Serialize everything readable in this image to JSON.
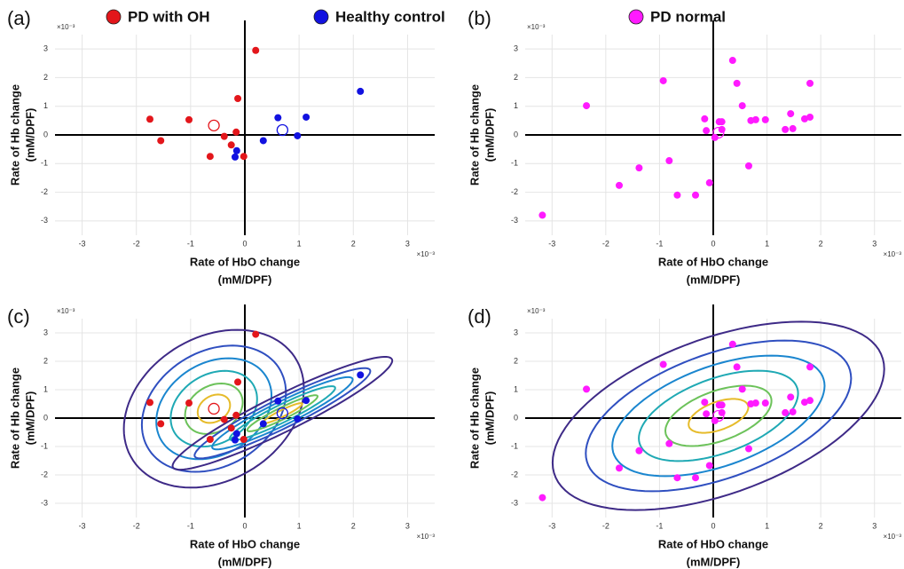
{
  "chart_data": [
    {
      "type": "scatter",
      "panel_label": "(a)",
      "xlabel": [
        "Rate of HbO change",
        "(mM/DPF)"
      ],
      "ylabel": [
        "Rate of Hb change",
        "(mM/DPF)"
      ],
      "x_exponent": "×10⁻³",
      "y_exponent": "×10⁻³",
      "xlim": [
        -3.5,
        3.5
      ],
      "ylim": [
        -3.5,
        3.5
      ],
      "xticks": [
        -3,
        -2,
        -1,
        0,
        1,
        2,
        3
      ],
      "yticks": [
        -3,
        -2,
        -1,
        0,
        1,
        2,
        3
      ],
      "grid": true,
      "show_mean": true,
      "contours": false,
      "series": [
        {
          "name": "PD with OH",
          "color": "#e3161b",
          "x": [
            0.2,
            -0.13,
            -1.75,
            -1.03,
            -1.55,
            -0.38,
            -0.25,
            -0.16,
            -0.64,
            -0.02
          ],
          "values": [
            2.95,
            1.27,
            0.55,
            0.53,
            -0.2,
            -0.05,
            -0.35,
            0.1,
            -0.75,
            -0.75
          ]
        },
        {
          "name": "Healthy control",
          "color": "#1212e0",
          "x": [
            2.13,
            1.13,
            0.61,
            0.34,
            0.97,
            -0.15,
            -0.18
          ],
          "values": [
            1.52,
            0.62,
            0.6,
            -0.2,
            -0.03,
            -0.55,
            -0.77
          ]
        }
      ]
    },
    {
      "type": "scatter",
      "panel_label": "(b)",
      "xlabel": [
        "Rate of HbO change",
        "(mM/DPF)"
      ],
      "ylabel": [
        "Rate of Hb change",
        "(mM/DPF)"
      ],
      "x_exponent": "×10⁻³",
      "y_exponent": "×10⁻³",
      "xlim": [
        -3.5,
        3.5
      ],
      "ylim": [
        -3.5,
        3.5
      ],
      "xticks": [
        -3,
        -2,
        -1,
        0,
        1,
        2,
        3
      ],
      "yticks": [
        -3,
        -2,
        -1,
        0,
        1,
        2,
        3
      ],
      "grid": true,
      "show_mean": true,
      "contours": false,
      "series": [
        {
          "name": "PD normal",
          "color": "#ff1aff",
          "x": [
            -3.18,
            -2.36,
            -1.75,
            -1.38,
            -0.93,
            -0.82,
            -0.67,
            -0.33,
            -0.07,
            -0.16,
            -0.13,
            0.03,
            0.11,
            0.16,
            0.16,
            0.36,
            0.44,
            0.54,
            0.7,
            0.79,
            0.66,
            0.97,
            1.34,
            1.44,
            1.48,
            1.7,
            1.8,
            1.8
          ],
          "values": [
            -2.8,
            1.02,
            -1.76,
            -1.15,
            1.89,
            -0.9,
            -2.1,
            -2.1,
            -1.67,
            0.56,
            0.15,
            -0.09,
            0.46,
            0.46,
            0.19,
            2.6,
            1.8,
            1.02,
            0.5,
            0.53,
            -1.08,
            0.53,
            0.19,
            0.74,
            0.22,
            0.56,
            0.62,
            1.8
          ]
        }
      ]
    },
    {
      "type": "scatter",
      "panel_label": "(c)",
      "xlabel": [
        "Rate of HbO change",
        "(mM/DPF)"
      ],
      "ylabel": [
        "Rate of Hb change",
        "(mM/DPF)"
      ],
      "x_exponent": "×10⁻³",
      "y_exponent": "×10⁻³",
      "xlim": [
        -3.5,
        3.5
      ],
      "ylim": [
        -3.5,
        3.5
      ],
      "xticks": [
        -3,
        -2,
        -1,
        0,
        1,
        2,
        3
      ],
      "yticks": [
        -3,
        -2,
        -1,
        0,
        1,
        2,
        3
      ],
      "grid": true,
      "show_mean": true,
      "contours": true,
      "contour_colors": [
        "#3e2a87",
        "#2f4fc0",
        "#1a86cf",
        "#1fa9b4",
        "#6cc25a",
        "#e6bb2a"
      ],
      "series": [
        {
          "color": "#e3161b",
          "x": [
            0.2,
            -0.13,
            -1.75,
            -1.03,
            -1.55,
            -0.38,
            -0.25,
            -0.16,
            -0.64,
            -0.02
          ],
          "values": [
            2.95,
            1.27,
            0.55,
            0.53,
            -0.2,
            -0.05,
            -0.35,
            0.1,
            -0.75,
            -0.75
          ]
        },
        {
          "color": "#1212e0",
          "x": [
            2.13,
            1.13,
            0.61,
            0.34,
            0.97,
            -0.15,
            -0.18
          ],
          "values": [
            1.52,
            0.62,
            0.6,
            -0.2,
            -0.03,
            -0.55,
            -0.77
          ]
        }
      ]
    },
    {
      "type": "scatter",
      "panel_label": "(d)",
      "xlabel": [
        "Rate of HbO change",
        "(mM/DPF)"
      ],
      "ylabel": [
        "Rate of Hb change",
        "(mM/DPF)"
      ],
      "x_exponent": "×10⁻³",
      "y_exponent": "×10⁻³",
      "xlim": [
        -3.5,
        3.5
      ],
      "ylim": [
        -3.5,
        3.5
      ],
      "xticks": [
        -3,
        -2,
        -1,
        0,
        1,
        2,
        3
      ],
      "yticks": [
        -3,
        -2,
        -1,
        0,
        1,
        2,
        3
      ],
      "grid": true,
      "show_mean": true,
      "contours": true,
      "contour_colors": [
        "#3e2a87",
        "#2f4fc0",
        "#1a86cf",
        "#1fa9b4",
        "#6cc25a",
        "#e6bb2a"
      ],
      "series": [
        {
          "color": "#ff1aff",
          "x": [
            -3.18,
            -2.36,
            -1.75,
            -1.38,
            -0.93,
            -0.82,
            -0.67,
            -0.33,
            -0.07,
            -0.16,
            -0.13,
            0.03,
            0.11,
            0.16,
            0.16,
            0.36,
            0.44,
            0.54,
            0.7,
            0.79,
            0.66,
            0.97,
            1.34,
            1.44,
            1.48,
            1.7,
            1.8,
            1.8
          ],
          "values": [
            -2.8,
            1.02,
            -1.76,
            -1.15,
            1.89,
            -0.9,
            -2.1,
            -2.1,
            -1.67,
            0.56,
            0.15,
            -0.09,
            0.46,
            0.46,
            0.19,
            2.6,
            1.8,
            1.02,
            0.5,
            0.53,
            -1.08,
            0.53,
            0.19,
            0.74,
            0.22,
            0.56,
            0.62,
            1.8
          ]
        }
      ]
    }
  ]
}
